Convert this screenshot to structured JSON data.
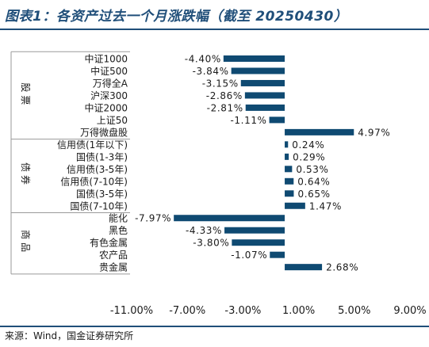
{
  "header": {
    "title": "图表1：各资产过去一个月涨跌幅（截至 20250430）"
  },
  "footer": {
    "source": "来源：Wind，国金证券研究所"
  },
  "colors": {
    "bar": "#0f4a72",
    "brand": "#1f4e79",
    "grid": "#9a9a9a"
  },
  "chart_data": {
    "type": "bar",
    "orientation": "horizontal",
    "groups": [
      {
        "name": "股票",
        "items": [
          {
            "label": "中证1000",
            "value": -4.4,
            "value_label": "-4.40%"
          },
          {
            "label": "中证500",
            "value": -3.84,
            "value_label": "-3.84%"
          },
          {
            "label": "万得全A",
            "value": -3.15,
            "value_label": "-3.15%"
          },
          {
            "label": "沪深300",
            "value": -2.86,
            "value_label": "-2.86%"
          },
          {
            "label": "中证2000",
            "value": -2.81,
            "value_label": "-2.81%"
          },
          {
            "label": "上证50",
            "value": -1.11,
            "value_label": "-1.11%"
          },
          {
            "label": "万得微盘股",
            "value": 4.97,
            "value_label": "4.97%"
          }
        ]
      },
      {
        "name": "债券",
        "items": [
          {
            "label": "信用债(1年以下)",
            "value": 0.24,
            "value_label": "0.24%"
          },
          {
            "label": "国债(1-3年)",
            "value": 0.29,
            "value_label": "0.29%"
          },
          {
            "label": "信用债(3-5年)",
            "value": 0.53,
            "value_label": "0.53%"
          },
          {
            "label": "信用债(7-10年)",
            "value": 0.64,
            "value_label": "0.64%"
          },
          {
            "label": "国债(3-5年)",
            "value": 0.65,
            "value_label": "0.65%"
          },
          {
            "label": "国债(7-10年)",
            "value": 1.47,
            "value_label": "1.47%"
          }
        ]
      },
      {
        "name": "商品",
        "items": [
          {
            "label": "能化",
            "value": -7.97,
            "value_label": "-7.97%"
          },
          {
            "label": "黑色",
            "value": -4.33,
            "value_label": "-4.33%"
          },
          {
            "label": "有色金属",
            "value": -3.8,
            "value_label": "-3.80%"
          },
          {
            "label": "农产品",
            "value": -1.07,
            "value_label": "-1.07%"
          },
          {
            "label": "贵金属",
            "value": 2.68,
            "value_label": "2.68%"
          }
        ]
      }
    ],
    "xlim": [
      -11,
      9
    ],
    "xticks": [
      -11,
      -7,
      -3,
      1,
      5,
      9
    ],
    "xtick_labels": [
      "-11.00%",
      "-7.00%",
      "-3.00%",
      "1.00%",
      "5.00%",
      "9.00%"
    ],
    "grid": false
  }
}
